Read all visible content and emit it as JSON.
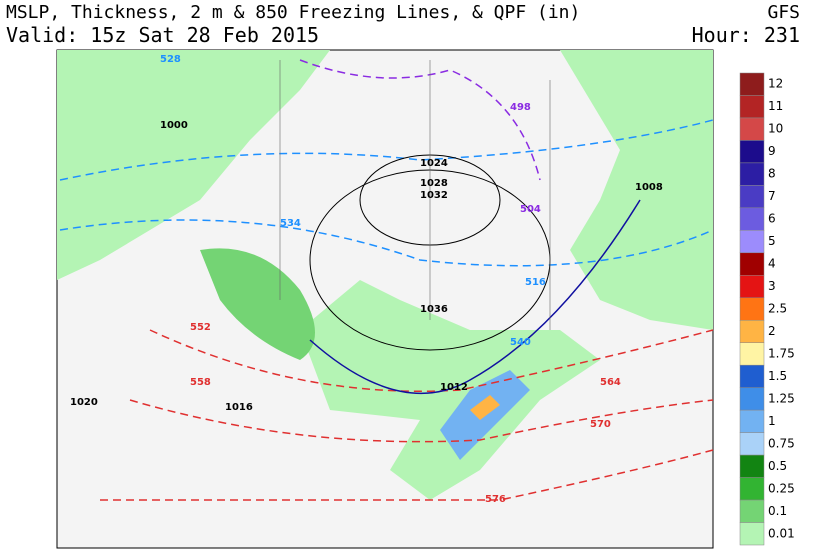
{
  "header": {
    "title": "MSLP, Thickness, 2 m & 850 Freezing Lines, & QPF (in)",
    "model": "GFS",
    "valid": "Valid: 15z Sat 28 Feb 2015",
    "hour": "Hour: 231"
  },
  "colorbar": {
    "items": [
      {
        "label": "12",
        "color": "#8e1c1c"
      },
      {
        "label": "11",
        "color": "#b32424"
      },
      {
        "label": "10",
        "color": "#d44848"
      },
      {
        "label": "9",
        "color": "#1c0c8c"
      },
      {
        "label": "8",
        "color": "#2c1ea4"
      },
      {
        "label": "7",
        "color": "#4a3cc4"
      },
      {
        "label": "6",
        "color": "#6c5ce0"
      },
      {
        "label": "5",
        "color": "#9c8cfc"
      },
      {
        "label": "4",
        "color": "#a00000"
      },
      {
        "label": "3",
        "color": "#e41414"
      },
      {
        "label": "2.5",
        "color": "#ff7414"
      },
      {
        "label": "2",
        "color": "#ffb444"
      },
      {
        "label": "1.75",
        "color": "#fff4a4"
      },
      {
        "label": "1.5",
        "color": "#1f5ed0"
      },
      {
        "label": "1.25",
        "color": "#3f8ee8"
      },
      {
        "label": "1",
        "color": "#72b2f2"
      },
      {
        "label": "0.75",
        "color": "#aad2f8"
      },
      {
        "label": "0.5",
        "color": "#128412"
      },
      {
        "label": "0.25",
        "color": "#32b432"
      },
      {
        "label": "0.1",
        "color": "#74d474"
      },
      {
        "label": "0.01",
        "color": "#b4f4b4"
      }
    ]
  },
  "map_labels": [
    {
      "text": "528",
      "color": "#1e90ff"
    },
    {
      "text": "1000",
      "color": "#000"
    },
    {
      "text": "1024",
      "color": "#000"
    },
    {
      "text": "1028",
      "color": "#000"
    },
    {
      "text": "1032",
      "color": "#000"
    },
    {
      "text": "1036",
      "color": "#000"
    },
    {
      "text": "534",
      "color": "#1e90ff"
    },
    {
      "text": "540",
      "color": "#1e90ff"
    },
    {
      "text": "552",
      "color": "#e03030"
    },
    {
      "text": "558",
      "color": "#e03030"
    },
    {
      "text": "564",
      "color": "#e03030"
    },
    {
      "text": "570",
      "color": "#e03030"
    },
    {
      "text": "576",
      "color": "#e03030"
    },
    {
      "text": "1020",
      "color": "#000"
    },
    {
      "text": "1016",
      "color": "#000"
    },
    {
      "text": "1012",
      "color": "#000"
    },
    {
      "text": "498",
      "color": "#8a2be2"
    },
    {
      "text": "504",
      "color": "#8a2be2"
    },
    {
      "text": "516",
      "color": "#1e90ff"
    },
    {
      "text": "1008",
      "color": "#000"
    }
  ]
}
